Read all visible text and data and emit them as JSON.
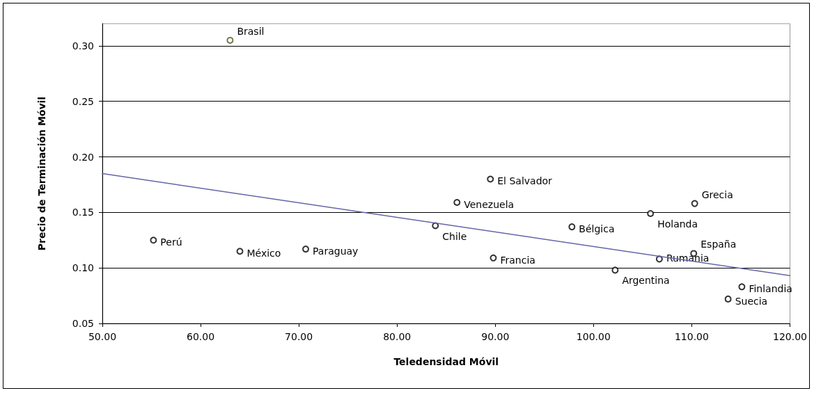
{
  "chart_data": {
    "type": "scatter",
    "xlabel": "Teledensidad Móvil",
    "ylabel": "Precio de Terminación Móvil",
    "xlim": [
      50,
      120
    ],
    "ylim": [
      0.05,
      0.32
    ],
    "xticks": [
      {
        "value": 50,
        "label": "50.00"
      },
      {
        "value": 60,
        "label": "60.00"
      },
      {
        "value": 70,
        "label": "70.00"
      },
      {
        "value": 80,
        "label": "80.00"
      },
      {
        "value": 90,
        "label": "90.00"
      },
      {
        "value": 100,
        "label": "100.00"
      },
      {
        "value": 110,
        "label": "110.00"
      },
      {
        "value": 120,
        "label": "120.00"
      }
    ],
    "yticks": [
      {
        "value": 0.05,
        "label": "0.05"
      },
      {
        "value": 0.1,
        "label": "0.10"
      },
      {
        "value": 0.15,
        "label": "0.15"
      },
      {
        "value": 0.2,
        "label": "0.20"
      },
      {
        "value": 0.25,
        "label": "0.25"
      },
      {
        "value": 0.3,
        "label": "0.30"
      }
    ],
    "grid": "y",
    "marker": "circle",
    "series": [
      {
        "x": [
          63.0,
          55.2,
          64.0,
          70.7,
          83.9,
          86.1,
          89.5,
          89.8,
          97.8,
          102.2,
          105.8,
          106.7,
          110.3,
          110.2,
          115.1,
          113.7
        ],
        "values": [
          0.305,
          0.125,
          0.115,
          0.117,
          0.138,
          0.159,
          0.18,
          0.109,
          0.137,
          0.098,
          0.149,
          0.108,
          0.158,
          0.113,
          0.083,
          0.072
        ],
        "colors": [
          "#55552a",
          "#000000",
          "#000000",
          "#000000",
          "#000000",
          "#000000",
          "#000000",
          "#000000",
          "#000000",
          "#000000",
          "#000000",
          "#000000",
          "#000000",
          "#000000",
          "#000000",
          "#000000"
        ]
      },
      {
        "type": "line",
        "x": [
          50,
          120
        ],
        "values": [
          0.185,
          0.093
        ],
        "color": "#6464a8",
        "marker": "none",
        "line_style": "solid"
      }
    ],
    "annotations": [
      {
        "text": "Brasil",
        "x": 63.0,
        "y": 0.305
      },
      {
        "text": "Perú",
        "x": 55.2,
        "y": 0.125
      },
      {
        "text": "México",
        "x": 64.0,
        "y": 0.115
      },
      {
        "text": "Paraguay",
        "x": 70.7,
        "y": 0.117
      },
      {
        "text": "Chile",
        "x": 83.9,
        "y": 0.138
      },
      {
        "text": "Venezuela",
        "x": 86.1,
        "y": 0.159
      },
      {
        "text": "El Salvador",
        "x": 89.5,
        "y": 0.18
      },
      {
        "text": "Francia",
        "x": 89.8,
        "y": 0.109
      },
      {
        "text": "Bélgica",
        "x": 97.8,
        "y": 0.137
      },
      {
        "text": "Argentina",
        "x": 102.2,
        "y": 0.098
      },
      {
        "text": "Holanda",
        "x": 105.8,
        "y": 0.149
      },
      {
        "text": "Rumania",
        "x": 106.7,
        "y": 0.108
      },
      {
        "text": "Grecia",
        "x": 110.3,
        "y": 0.158
      },
      {
        "text": "España",
        "x": 110.2,
        "y": 0.113
      },
      {
        "text": "Finlandia",
        "x": 115.1,
        "y": 0.083
      },
      {
        "text": "Suecia",
        "x": 113.7,
        "y": 0.072
      }
    ]
  }
}
